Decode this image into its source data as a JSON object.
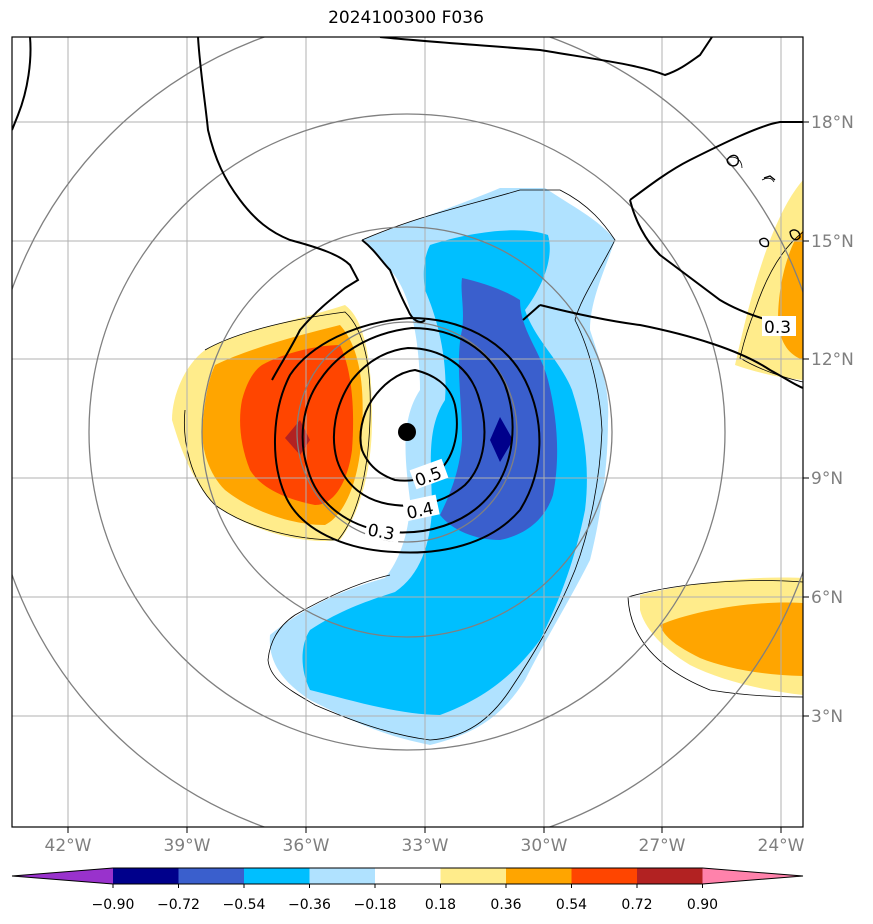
{
  "title": "2024100300 F036",
  "colors": {
    "c_n090": "#9932cc",
    "c_n072": "#00008b",
    "c_n054": "#3a5fcd",
    "c_n036": "#00bfff",
    "c_n018": "#b0e2ff",
    "c_0": "#ffffff",
    "c_p018": "#ffec8b",
    "c_p036": "#ffa500",
    "c_p054": "#ff4500",
    "c_p072": "#b22222",
    "c_p090": "#ff82ab",
    "grid": "#b0b0b0",
    "rings": "#808080",
    "contour": "#000000",
    "center": "#000000"
  },
  "axes": {
    "lon_ticks": [
      "42°W",
      "39°W",
      "36°W",
      "33°W",
      "30°W",
      "27°W",
      "24°W"
    ],
    "lat_ticks": [
      "18°N",
      "15°N",
      "12°N",
      "9°N",
      "6°N",
      "3°N"
    ]
  },
  "contour_labels": [
    "0.5",
    "0.4",
    "0.3",
    "0.3"
  ],
  "colorbar": {
    "ticks": [
      "−0.90",
      "−0.72",
      "−0.54",
      "−0.36",
      "−0.18",
      "0.18",
      "0.36",
      "0.54",
      "0.72",
      "0.90"
    ]
  },
  "storm_center": {
    "lon": -33.4,
    "lat": 10.1
  }
}
